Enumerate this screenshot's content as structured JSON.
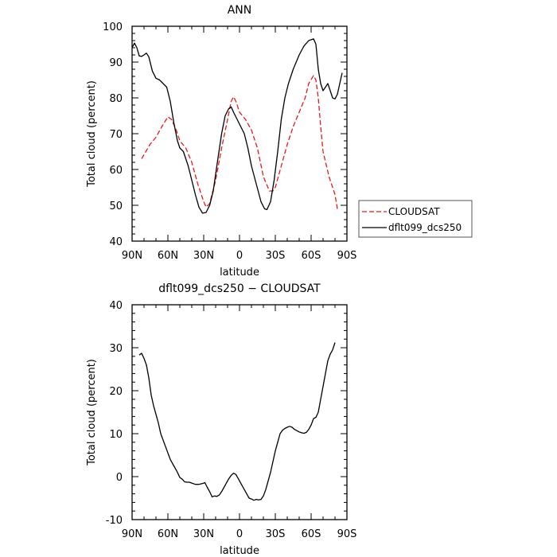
{
  "chart_data": [
    {
      "type": "line",
      "title": "ANN",
      "xlabel": "latitude",
      "ylabel": "Total cloud (percent)",
      "xlim": [
        -90,
        90
      ],
      "ylim": [
        40,
        100
      ],
      "xticks": [
        -90,
        -60,
        -30,
        0,
        30,
        60,
        90
      ],
      "xtick_labels": [
        "90N",
        "60N",
        "30N",
        "0",
        "30S",
        "60S",
        "90S"
      ],
      "yticks": [
        40,
        50,
        60,
        70,
        80,
        90,
        100
      ],
      "legend": {
        "placement": "right"
      },
      "series": [
        {
          "name": "CLOUDSAT",
          "color": "#e8191e",
          "dash": "dashed",
          "points": [
            [
              -82,
              63
            ],
            [
              -75,
              67
            ],
            [
              -70,
              69
            ],
            [
              -65,
              72
            ],
            [
              -60,
              74.7
            ],
            [
              -57,
              74
            ],
            [
              -53,
              71
            ],
            [
              -50,
              68
            ],
            [
              -45,
              66
            ],
            [
              -40,
              62
            ],
            [
              -35,
              56
            ],
            [
              -30,
              51
            ],
            [
              -28,
              49.5
            ],
            [
              -25,
              50.5
            ],
            [
              -20,
              57
            ],
            [
              -15,
              66
            ],
            [
              -10,
              74
            ],
            [
              -7,
              79
            ],
            [
              -5,
              80.3
            ],
            [
              -3,
              79
            ],
            [
              0,
              76
            ],
            [
              5,
              74
            ],
            [
              10,
              71
            ],
            [
              15,
              66
            ],
            [
              20,
              58
            ],
            [
              25,
              54
            ],
            [
              28,
              54
            ],
            [
              30,
              55
            ],
            [
              35,
              61
            ],
            [
              40,
              67
            ],
            [
              45,
              72
            ],
            [
              50,
              76
            ],
            [
              55,
              80
            ],
            [
              58,
              84
            ],
            [
              62,
              86.2
            ],
            [
              64,
              85
            ],
            [
              66,
              80
            ],
            [
              68,
              72
            ],
            [
              70,
              65
            ],
            [
              75,
              58
            ],
            [
              80,
              53
            ],
            [
              82,
              49
            ]
          ]
        },
        {
          "name": "dflt099_dcs250",
          "color": "#000000",
          "dash": "solid",
          "points": [
            [
              -90,
              94
            ],
            [
              -88,
              95.3
            ],
            [
              -86,
              94
            ],
            [
              -84,
              91.7
            ],
            [
              -82,
              91.6
            ],
            [
              -80,
              92
            ],
            [
              -78,
              92.5
            ],
            [
              -76,
              91.5
            ],
            [
              -73,
              87.5
            ],
            [
              -70,
              85.5
            ],
            [
              -67,
              85
            ],
            [
              -64,
              84
            ],
            [
              -61,
              83
            ],
            [
              -58,
              79
            ],
            [
              -55,
              73
            ],
            [
              -52,
              68
            ],
            [
              -50,
              66
            ],
            [
              -47,
              65
            ],
            [
              -43,
              61
            ],
            [
              -40,
              57
            ],
            [
              -37,
              53
            ],
            [
              -34,
              49.5
            ],
            [
              -31,
              47.8
            ],
            [
              -28,
              48
            ],
            [
              -25,
              50
            ],
            [
              -22,
              54
            ],
            [
              -19,
              61
            ],
            [
              -15,
              70
            ],
            [
              -12,
              75
            ],
            [
              -9,
              77
            ],
            [
              -7,
              77.5
            ],
            [
              -5,
              76
            ],
            [
              -2,
              74
            ],
            [
              1,
              72
            ],
            [
              4,
              70
            ],
            [
              7,
              66
            ],
            [
              10,
              61
            ],
            [
              14,
              56
            ],
            [
              18,
              51
            ],
            [
              21,
              49
            ],
            [
              23,
              48.8
            ],
            [
              26,
              51
            ],
            [
              29,
              57
            ],
            [
              32,
              65
            ],
            [
              35,
              74
            ],
            [
              38,
              80
            ],
            [
              41,
              84
            ],
            [
              45,
              88
            ],
            [
              50,
              92
            ],
            [
              54,
              94.5
            ],
            [
              58,
              96
            ],
            [
              62,
              96.5
            ],
            [
              64,
              95
            ],
            [
              66,
              88
            ],
            [
              68,
              84
            ],
            [
              70,
              82
            ],
            [
              72,
              83
            ],
            [
              74,
              84
            ],
            [
              76,
              82
            ],
            [
              78,
              80
            ],
            [
              80,
              79.7
            ],
            [
              82,
              81
            ],
            [
              84,
              84
            ],
            [
              86,
              87
            ]
          ]
        }
      ]
    },
    {
      "type": "line",
      "title": "dflt099_dcs250 − CLOUDSAT",
      "xlabel": "latitude",
      "ylabel": "Total cloud (percent)",
      "xlim": [
        -90,
        90
      ],
      "ylim": [
        -10,
        40
      ],
      "xticks": [
        -90,
        -60,
        -30,
        0,
        30,
        60,
        90
      ],
      "xtick_labels": [
        "90N",
        "60N",
        "30N",
        "0",
        "30S",
        "60S",
        "90S"
      ],
      "yticks": [
        -10,
        0,
        10,
        20,
        30,
        40
      ],
      "series": [
        {
          "color": "#000000",
          "dash": "solid",
          "points": [
            [
              -84,
              28.3
            ],
            [
              -82,
              28.7
            ],
            [
              -80,
              27.5
            ],
            [
              -78,
              26
            ],
            [
              -76,
              23
            ],
            [
              -74,
              19
            ],
            [
              -72,
              16.5
            ],
            [
              -70,
              14.5
            ],
            [
              -68,
              12.5
            ],
            [
              -66,
              10
            ],
            [
              -64,
              8.5
            ],
            [
              -62,
              7
            ],
            [
              -60,
              5.5
            ],
            [
              -58,
              4
            ],
            [
              -55,
              2.5
            ],
            [
              -52,
              1
            ],
            [
              -50,
              -0.2
            ],
            [
              -48,
              -0.6
            ],
            [
              -46,
              -1.2
            ],
            [
              -44,
              -1.3
            ],
            [
              -42,
              -1.3
            ],
            [
              -40,
              -1.5
            ],
            [
              -37,
              -1.8
            ],
            [
              -34,
              -1.8
            ],
            [
              -31,
              -1.6
            ],
            [
              -29,
              -1.4
            ],
            [
              -27,
              -2.5
            ],
            [
              -25,
              -3.5
            ],
            [
              -23,
              -4.7
            ],
            [
              -21,
              -4.5
            ],
            [
              -19,
              -4.6
            ],
            [
              -17,
              -4.3
            ],
            [
              -15,
              -3.5
            ],
            [
              -13,
              -2.5
            ],
            [
              -11,
              -1.5
            ],
            [
              -9,
              -0.5
            ],
            [
              -7,
              0.3
            ],
            [
              -5,
              0.8
            ],
            [
              -3,
              0.5
            ],
            [
              -1,
              -0.5
            ],
            [
              2,
              -2
            ],
            [
              4,
              -3
            ],
            [
              6,
              -4
            ],
            [
              8,
              -5
            ],
            [
              10,
              -5.2
            ],
            [
              12,
              -5.5
            ],
            [
              14,
              -5.3
            ],
            [
              16,
              -5.4
            ],
            [
              18,
              -5.3
            ],
            [
              20,
              -4.5
            ],
            [
              22,
              -3
            ],
            [
              24,
              -1
            ],
            [
              26,
              1
            ],
            [
              28,
              3.5
            ],
            [
              30,
              6
            ],
            [
              32,
              8
            ],
            [
              34,
              10
            ],
            [
              36,
              10.8
            ],
            [
              38,
              11.2
            ],
            [
              40,
              11.5
            ],
            [
              42,
              11.7
            ],
            [
              44,
              11.5
            ],
            [
              46,
              11
            ],
            [
              48,
              10.7
            ],
            [
              50,
              10.4
            ],
            [
              52,
              10.2
            ],
            [
              54,
              10.1
            ],
            [
              56,
              10.3
            ],
            [
              58,
              11
            ],
            [
              60,
              12
            ],
            [
              62,
              13.5
            ],
            [
              64,
              13.8
            ],
            [
              66,
              15
            ],
            [
              68,
              18
            ],
            [
              70,
              21
            ],
            [
              72,
              24
            ],
            [
              74,
              27
            ],
            [
              76,
              28.5
            ],
            [
              78,
              29.5
            ],
            [
              80,
              31.2
            ]
          ]
        }
      ]
    }
  ]
}
